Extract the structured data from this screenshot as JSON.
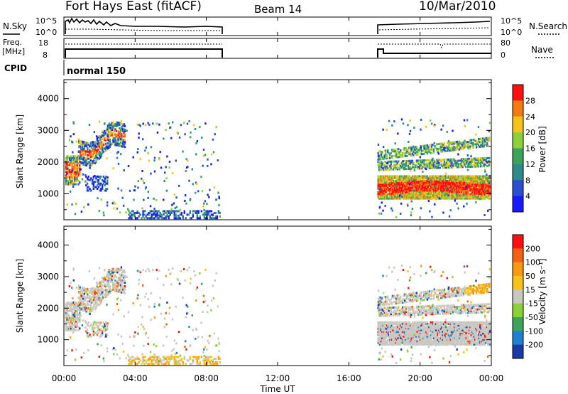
{
  "header": {
    "station": "Fort Hays East (fitACF)",
    "beam": "Beam 14",
    "date": "10/Mar/2010"
  },
  "noise_panel": {
    "left_label": "N.Sky",
    "left_ticks": [
      "10^5",
      "10^0"
    ],
    "right_ticks": [
      "10^5",
      "10^0"
    ],
    "right_label": "N.Search"
  },
  "freq_panel": {
    "left_label_1": "Freq.",
    "left_label_2": "[MHz]",
    "left_ticks": [
      "18",
      "8"
    ],
    "right_ticks": [
      "80",
      "0"
    ],
    "right_label": "Nave"
  },
  "cpid_panel": {
    "label": "CPID",
    "mode": "normal 150"
  },
  "chart_data": [
    {
      "type": "heatmap",
      "name": "power",
      "ylabel": "Slant Range [km]",
      "ylim": [
        180,
        4600
      ],
      "yticks": [
        "1000",
        "2000",
        "3000",
        "4000"
      ],
      "colorbar_label": "Power [dB]",
      "colorbar_ticks": [
        "4",
        "8",
        "12",
        "16",
        "20",
        "24",
        "28"
      ],
      "colors": [
        "#1a1aff",
        "#2a4fd0",
        "#2e8a8a",
        "#3ca45a",
        "#8bd23a",
        "#f7c21a",
        "#f77a10",
        "#ff1010"
      ],
      "xlim": [
        0,
        24
      ],
      "data_gap_hours": [
        8.8,
        17.6
      ]
    },
    {
      "type": "heatmap",
      "name": "velocity",
      "ylabel": "Slant Range [km]",
      "ylim": [
        180,
        4600
      ],
      "yticks": [
        "1000",
        "2000",
        "3000",
        "4000"
      ],
      "colorbar_label": "Velocity [m s⁻¹]",
      "colorbar_ticks": [
        "200",
        "100",
        "50",
        "15",
        "-15",
        "-50",
        "-100",
        "-200"
      ],
      "colors": [
        "#1a3aa8",
        "#1f7fd0",
        "#3ca45a",
        "#8bd23a",
        "#c8c8c0",
        "#f7c21a",
        "#f79a10",
        "#f76010",
        "#ff1010"
      ],
      "xlim": [
        0,
        24
      ],
      "data_gap_hours": [
        8.8,
        17.6
      ]
    }
  ],
  "x_axis": {
    "ticks": [
      "00:00",
      "04:00",
      "08:00",
      "12:00",
      "16:00",
      "20:00",
      "00:00"
    ],
    "label": "Time UT"
  }
}
